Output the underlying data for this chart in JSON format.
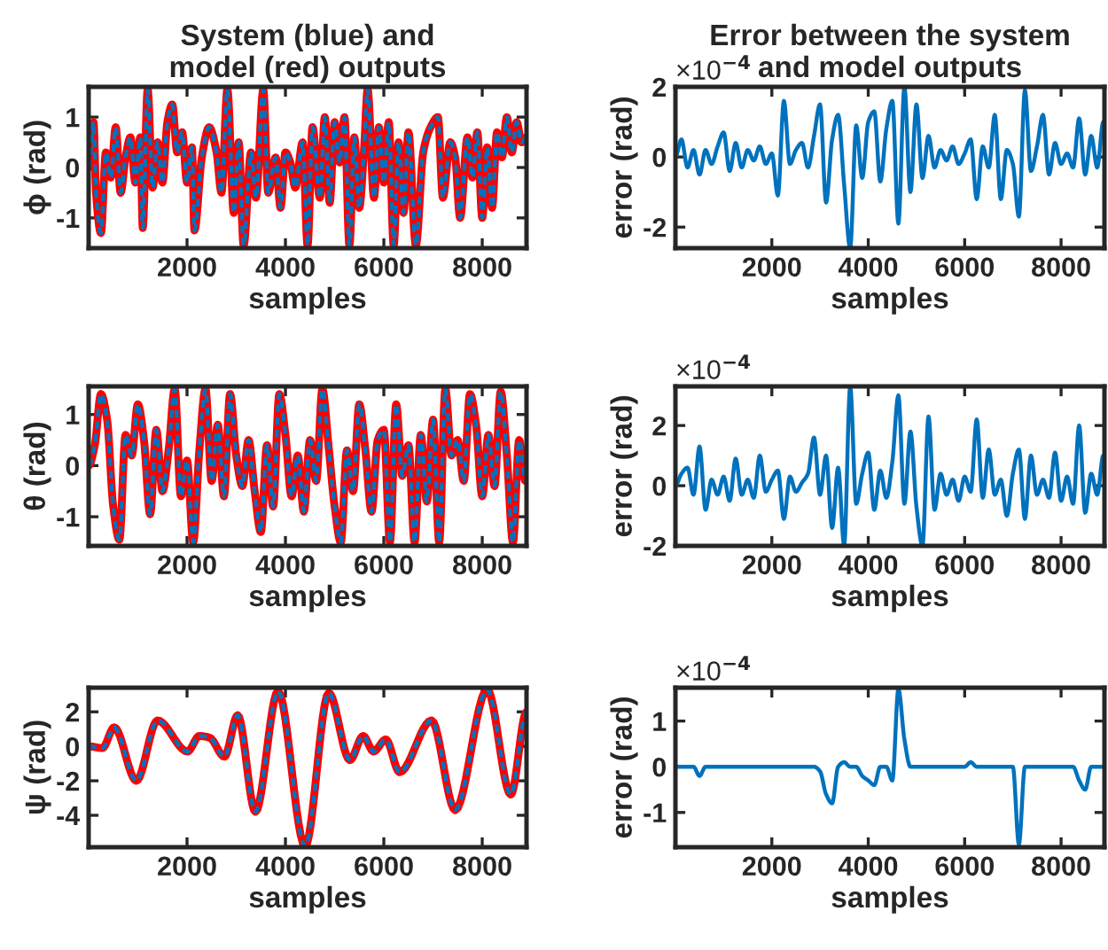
{
  "chart_data": [
    {
      "type": "line",
      "title": "System (blue) and\nmodel (red) outputs",
      "xlabel": "samples",
      "ylabel": "ϕ (rad)",
      "x": [
        0,
        100,
        150,
        250,
        350,
        450,
        550,
        650,
        750,
        850,
        950,
        1050,
        1100,
        1200,
        1300,
        1400,
        1500,
        1600,
        1700,
        1800,
        1900,
        2000,
        2100,
        2150,
        2300,
        2450,
        2600,
        2700,
        2820,
        2950,
        3050,
        3150,
        3300,
        3400,
        3550,
        3650,
        3800,
        3900,
        4000,
        4100,
        4200,
        4350,
        4450,
        4550,
        4700,
        4800,
        4900,
        5000,
        5100,
        5200,
        5300,
        5400,
        5500,
        5600,
        5670,
        5800,
        5900,
        6000,
        6100,
        6200,
        6300,
        6400,
        6500,
        6650,
        6800,
        6950,
        7100,
        7200,
        7350,
        7450,
        7550,
        7700,
        7800,
        7900,
        8000,
        8100,
        8200,
        8300,
        8400,
        8500,
        8600,
        8700,
        8800,
        8900
      ],
      "series": [
        {
          "color": "#ff0000",
          "line_style": "solid",
          "values": [
            0,
            0.9,
            -0.5,
            -1.3,
            0.3,
            -0.2,
            0.8,
            -0.5,
            0.2,
            0.6,
            -0.3,
            0.6,
            -1.2,
            1.55,
            -0.4,
            0.5,
            -0.3,
            0.9,
            1.25,
            0.3,
            0.7,
            -0.3,
            0.4,
            -1.25,
            0.2,
            0.8,
            0.3,
            -0.5,
            1.55,
            -0.9,
            0.5,
            -1.55,
            0.3,
            -0.6,
            1.55,
            -0.5,
            0.2,
            -0.8,
            0.3,
            0.1,
            -0.4,
            0.5,
            -1.55,
            0.8,
            -0.6,
            1.0,
            -0.7,
            0.9,
            0.1,
            1.0,
            -1.55,
            0.6,
            -0.8,
            0.4,
            1.55,
            -0.6,
            0.8,
            -0.3,
            0.9,
            -1.55,
            0.5,
            -0.9,
            0.7,
            -1.55,
            0.3,
            0.8,
            1.0,
            -0.6,
            0.5,
            0.2,
            -1.0,
            0.6,
            -0.2,
            0.7,
            -1.0,
            0.4,
            -0.8,
            0.7,
            0.2,
            1.0,
            0.3,
            0.9,
            0.5,
            0.6
          ]
        },
        {
          "color": "#0072bd",
          "line_style": "dashed",
          "values": [
            0,
            0.9,
            -0.5,
            -1.3,
            0.3,
            -0.2,
            0.8,
            -0.5,
            0.2,
            0.6,
            -0.3,
            0.6,
            -1.2,
            1.55,
            -0.4,
            0.5,
            -0.3,
            0.9,
            1.25,
            0.3,
            0.7,
            -0.3,
            0.4,
            -1.25,
            0.2,
            0.8,
            0.3,
            -0.5,
            1.55,
            -0.9,
            0.5,
            -1.55,
            0.3,
            -0.6,
            1.55,
            -0.5,
            0.2,
            -0.8,
            0.3,
            0.1,
            -0.4,
            0.5,
            -1.55,
            0.8,
            -0.6,
            1.0,
            -0.7,
            0.9,
            0.1,
            1.0,
            -1.55,
            0.6,
            -0.8,
            0.4,
            1.55,
            -0.6,
            0.8,
            -0.3,
            0.9,
            -1.55,
            0.5,
            -0.9,
            0.7,
            -1.55,
            0.3,
            0.8,
            1.0,
            -0.6,
            0.5,
            0.2,
            -1.0,
            0.6,
            -0.2,
            0.7,
            -1.0,
            0.4,
            -0.8,
            0.7,
            0.2,
            1.0,
            0.3,
            0.9,
            0.5,
            0.6
          ]
        }
      ],
      "xlim": [
        0,
        8900
      ],
      "xticks": [
        2000,
        4000,
        6000,
        8000
      ],
      "ylim": [
        -1.6,
        1.6
      ],
      "yticks": [
        -1,
        0,
        1
      ]
    },
    {
      "type": "line",
      "title": "Error between the system\nand model outputs",
      "xlabel": "samples",
      "ylabel": "error (rad)",
      "annotations": [
        "×10$^{−4}$"
      ],
      "x": [
        0,
        125,
        250,
        375,
        500,
        625,
        750,
        875,
        1000,
        1125,
        1250,
        1375,
        1500,
        1625,
        1750,
        1875,
        2000,
        2125,
        2250,
        2375,
        2500,
        2625,
        2750,
        2875,
        3000,
        3125,
        3250,
        3375,
        3500,
        3625,
        3750,
        3875,
        4000,
        4125,
        4250,
        4375,
        4500,
        4625,
        4750,
        4875,
        5000,
        5125,
        5250,
        5375,
        5500,
        5625,
        5750,
        5875,
        6000,
        6125,
        6250,
        6375,
        6500,
        6625,
        6750,
        6875,
        7000,
        7125,
        7250,
        7375,
        7500,
        7625,
        7750,
        7875,
        8000,
        8125,
        8250,
        8375,
        8500,
        8625,
        8750,
        8875
      ],
      "series": [
        {
          "color": "#0072bd",
          "values": [
            0,
            0.5,
            -0.3,
            0.2,
            -0.5,
            0.2,
            -0.2,
            0.3,
            0.7,
            -0.4,
            0.4,
            -0.3,
            0.2,
            -0.1,
            0.3,
            -0.2,
            0.1,
            -1.1,
            1.6,
            -0.2,
            0.2,
            0.4,
            -0.3,
            0.6,
            1.5,
            -1.3,
            0.5,
            1.2,
            -0.8,
            -2.6,
            0.9,
            -0.6,
            1.0,
            1.3,
            -0.7,
            0.8,
            1.6,
            -1.9,
            2.0,
            -1.0,
            1.5,
            -0.6,
            0.6,
            -0.3,
            0.2,
            -0.1,
            0.3,
            -0.2,
            0.1,
            0.5,
            -1.2,
            0.3,
            -0.3,
            1.2,
            -1.2,
            0.2,
            -0.2,
            -1.7,
            1.9,
            -0.4,
            0.3,
            1.2,
            -0.5,
            0.4,
            -0.2,
            0.1,
            -0.3,
            1.1,
            -0.5,
            0.6,
            -0.3,
            1.0
          ]
        }
      ],
      "xlim": [
        0,
        8900
      ],
      "xticks": [
        2000,
        4000,
        6000,
        8000
      ],
      "ylim": [
        -2.6,
        2.0
      ],
      "yticks": [
        -2,
        0,
        2
      ]
    },
    {
      "type": "line",
      "xlabel": "samples",
      "ylabel": "θ (rad)",
      "x": [
        0,
        125,
        250,
        375,
        500,
        625,
        750,
        875,
        1000,
        1125,
        1250,
        1375,
        1500,
        1625,
        1750,
        1875,
        2000,
        2125,
        2250,
        2375,
        2500,
        2625,
        2750,
        2875,
        3000,
        3125,
        3250,
        3375,
        3500,
        3625,
        3750,
        3875,
        4000,
        4125,
        4250,
        4375,
        4500,
        4625,
        4750,
        4875,
        5000,
        5125,
        5250,
        5375,
        5500,
        5625,
        5750,
        5875,
        6000,
        6125,
        6250,
        6375,
        6500,
        6625,
        6750,
        6875,
        7000,
        7125,
        7250,
        7375,
        7500,
        7625,
        7750,
        7875,
        8000,
        8125,
        8250,
        8375,
        8500,
        8625,
        8750,
        8875
      ],
      "series": [
        {
          "color": "#ff0000",
          "line_style": "solid",
          "values": [
            0,
            0.4,
            1.4,
            0.9,
            -0.8,
            -1.45,
            0.6,
            0.2,
            1.2,
            0.5,
            -0.95,
            0.7,
            -0.5,
            0.3,
            1.5,
            -0.6,
            0.1,
            -1.5,
            0.3,
            1.5,
            -0.3,
            0.8,
            -0.6,
            1.4,
            0.2,
            -0.4,
            0.5,
            -0.5,
            -1.3,
            0.4,
            -0.8,
            1.4,
            0.6,
            -0.6,
            0.2,
            -0.9,
            0.5,
            -0.3,
            1.5,
            0.4,
            -0.8,
            -1.5,
            0.3,
            -0.5,
            1.2,
            0.3,
            -0.9,
            0.5,
            0.7,
            -1.5,
            1.2,
            -0.2,
            0.4,
            -1.5,
            0.6,
            -0.7,
            0.9,
            -1.5,
            1.5,
            0.2,
            0.5,
            -0.3,
            1.4,
            0.8,
            -0.6,
            0.6,
            -0.4,
            1.45,
            0.2,
            -1.5,
            0.5,
            -0.3
          ]
        },
        {
          "color": "#0072bd",
          "line_style": "dashed",
          "values": [
            0,
            0.4,
            1.4,
            0.9,
            -0.8,
            -1.45,
            0.6,
            0.2,
            1.2,
            0.5,
            -0.95,
            0.7,
            -0.5,
            0.3,
            1.5,
            -0.6,
            0.1,
            -1.5,
            0.3,
            1.5,
            -0.3,
            0.8,
            -0.6,
            1.4,
            0.2,
            -0.4,
            0.5,
            -0.5,
            -1.3,
            0.4,
            -0.8,
            1.4,
            0.6,
            -0.6,
            0.2,
            -0.9,
            0.5,
            -0.3,
            1.5,
            0.4,
            -0.8,
            -1.5,
            0.3,
            -0.5,
            1.2,
            0.3,
            -0.9,
            0.5,
            0.7,
            -1.5,
            1.2,
            -0.2,
            0.4,
            -1.5,
            0.6,
            -0.7,
            0.9,
            -1.5,
            1.5,
            0.2,
            0.5,
            -0.3,
            1.4,
            0.8,
            -0.6,
            0.6,
            -0.4,
            1.45,
            0.2,
            -1.5,
            0.5,
            -0.3
          ]
        }
      ],
      "xlim": [
        0,
        8900
      ],
      "xticks": [
        2000,
        4000,
        6000,
        8000
      ],
      "ylim": [
        -1.57,
        1.55
      ],
      "yticks": [
        -1,
        0,
        1
      ]
    },
    {
      "type": "line",
      "xlabel": "samples",
      "ylabel": "error (rad)",
      "annotations": [
        "×10$^{−4}$"
      ],
      "x": [
        0,
        125,
        250,
        375,
        500,
        625,
        750,
        875,
        1000,
        1125,
        1250,
        1375,
        1500,
        1625,
        1750,
        1875,
        2000,
        2125,
        2250,
        2375,
        2500,
        2625,
        2750,
        2875,
        3000,
        3125,
        3250,
        3375,
        3500,
        3625,
        3750,
        3875,
        4000,
        4125,
        4250,
        4375,
        4500,
        4625,
        4750,
        4875,
        5000,
        5125,
        5250,
        5375,
        5500,
        5625,
        5750,
        5875,
        6000,
        6125,
        6250,
        6375,
        6500,
        6625,
        6750,
        6875,
        7000,
        7125,
        7250,
        7375,
        7500,
        7625,
        7750,
        7875,
        8000,
        8125,
        8250,
        8375,
        8500,
        8625,
        8750,
        8875
      ],
      "series": [
        {
          "color": "#0072bd",
          "values": [
            0,
            0.4,
            0.6,
            -0.3,
            1.3,
            -0.8,
            0.2,
            -0.3,
            0.3,
            -0.5,
            0.9,
            -0.3,
            0.2,
            -0.4,
            1.0,
            -0.2,
            0.2,
            0.5,
            -1.1,
            0.3,
            -0.2,
            0.1,
            0.4,
            1.6,
            -0.3,
            1.0,
            -1.4,
            0.6,
            -2.0,
            3.3,
            -0.6,
            0.4,
            1.1,
            -0.8,
            0.5,
            -0.4,
            0.8,
            3.0,
            -0.6,
            1.8,
            -0.7,
            -2.0,
            2.3,
            -0.8,
            0.4,
            -0.3,
            0.2,
            -0.5,
            0.3,
            -0.2,
            2.2,
            -0.4,
            1.2,
            -0.3,
            0.2,
            -1.0,
            0.4,
            1.2,
            -1.1,
            1.0,
            -0.3,
            0.2,
            -0.4,
            1.1,
            -0.5,
            0.3,
            -0.6,
            2.0,
            -0.9,
            0.4,
            -0.3,
            1.0
          ]
        }
      ],
      "xlim": [
        0,
        8900
      ],
      "xticks": [
        2000,
        4000,
        6000,
        8000
      ],
      "ylim": [
        -2.0,
        3.3
      ],
      "yticks": [
        -2,
        0,
        2
      ]
    },
    {
      "type": "line",
      "xlabel": "samples",
      "ylabel": "ψ (rad)",
      "x": [
        0,
        280,
        520,
        970,
        1400,
        2010,
        2250,
        2460,
        2760,
        3030,
        3390,
        3850,
        4400,
        4880,
        5310,
        5580,
        5790,
        6040,
        6320,
        6970,
        7450,
        8100,
        8580,
        8900
      ],
      "series": [
        {
          "color": "#ff0000",
          "line_style": "solid",
          "values": [
            0,
            -0.1,
            1.1,
            -2.0,
            1.5,
            -0.3,
            0.6,
            0.5,
            -0.6,
            1.8,
            -3.8,
            3.2,
            -5.8,
            3.1,
            -0.8,
            0.6,
            -0.3,
            0.4,
            -1.5,
            1.5,
            -3.7,
            3.3,
            -2.8,
            2.0
          ]
        },
        {
          "color": "#0072bd",
          "line_style": "dashed",
          "values": [
            0,
            -0.1,
            1.1,
            -2.0,
            1.5,
            -0.3,
            0.6,
            0.5,
            -0.6,
            1.8,
            -3.8,
            3.2,
            -5.8,
            3.1,
            -0.8,
            0.6,
            -0.3,
            0.4,
            -1.5,
            1.5,
            -3.7,
            3.3,
            -2.8,
            2.0
          ]
        }
      ],
      "xlim": [
        0,
        8900
      ],
      "xticks": [
        2000,
        4000,
        6000,
        8000
      ],
      "ylim": [
        -5.85,
        3.4
      ],
      "yticks": [
        -4,
        -2,
        0,
        2
      ]
    },
    {
      "type": "line",
      "xlabel": "samples",
      "ylabel": "error (rad)",
      "annotations": [
        "×10$^{−4}$"
      ],
      "x": [
        0,
        125,
        250,
        375,
        500,
        625,
        750,
        875,
        1000,
        1125,
        1250,
        1375,
        1500,
        1625,
        1750,
        1875,
        2000,
        2125,
        2250,
        2375,
        2500,
        2625,
        2750,
        2875,
        3000,
        3125,
        3250,
        3375,
        3500,
        3625,
        3750,
        3875,
        4000,
        4125,
        4250,
        4375,
        4500,
        4625,
        4750,
        4875,
        5000,
        5125,
        5250,
        5375,
        5500,
        5625,
        5750,
        5875,
        6000,
        6125,
        6250,
        6375,
        6500,
        6625,
        6750,
        6875,
        7000,
        7125,
        7250,
        7375,
        7500,
        7625,
        7750,
        7875,
        8000,
        8125,
        8250,
        8375,
        8500,
        8625,
        8750,
        8875
      ],
      "series": [
        {
          "color": "#0072bd",
          "values": [
            0,
            0,
            0,
            0,
            -0.2,
            0,
            0,
            0,
            0,
            0,
            0,
            0,
            0,
            0,
            0,
            0,
            0,
            0,
            0,
            0,
            0,
            0,
            0,
            0,
            -0.1,
            -0.6,
            -0.8,
            0,
            0.1,
            0,
            0,
            -0.2,
            -0.3,
            -0.4,
            0,
            0,
            -0.3,
            1.7,
            0.6,
            0,
            0,
            0,
            0,
            0,
            0,
            0,
            0,
            0,
            0,
            0.1,
            0,
            0,
            0,
            0,
            0,
            0,
            0,
            -1.7,
            0,
            0,
            0,
            0,
            0,
            0,
            0,
            0,
            0,
            -0.3,
            -0.5,
            0,
            0,
            0
          ]
        }
      ],
      "xlim": [
        0,
        8900
      ],
      "xticks": [
        2000,
        4000,
        6000,
        8000
      ],
      "ylim": [
        -1.76,
        1.73
      ],
      "yticks": [
        -1,
        0,
        1
      ]
    }
  ]
}
